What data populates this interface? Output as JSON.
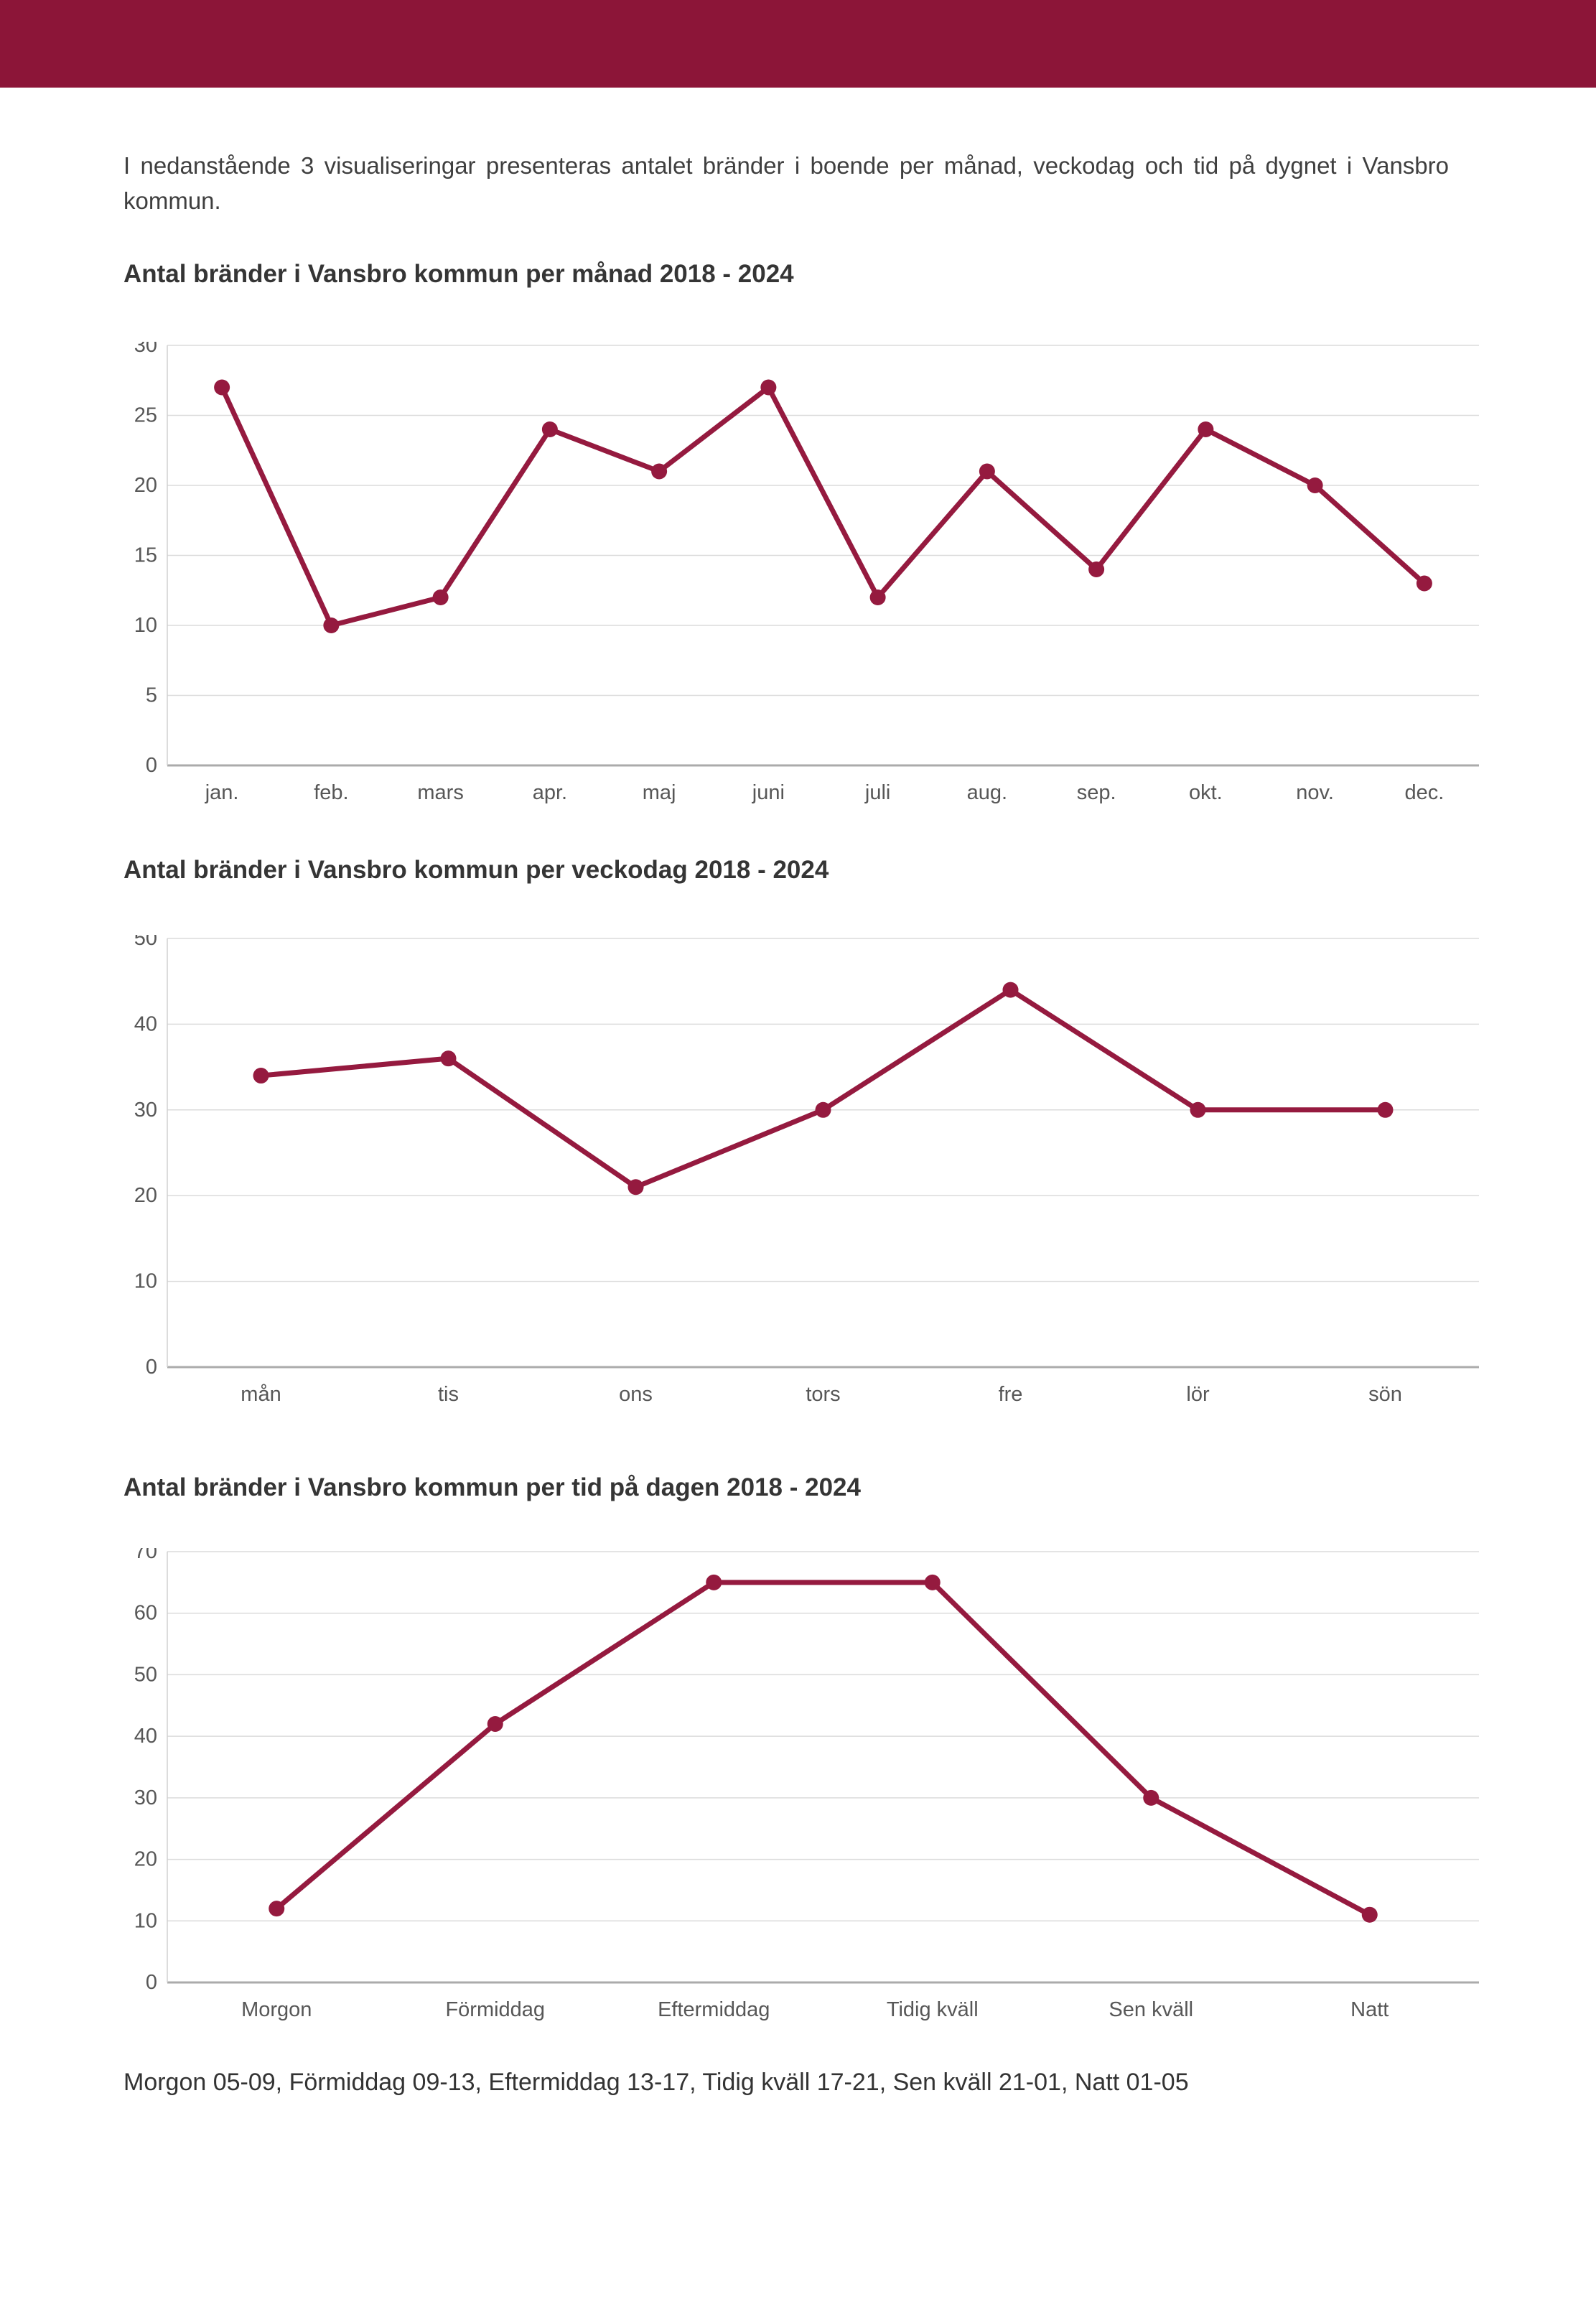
{
  "page": {
    "intro_text": "I nedanstående 3 visualiseringar presenteras antalet bränder i boende per månad, veckodag och tid på dygnet i Vansbro kommun.",
    "footer_note": "Morgon 05-09, Förmiddag 09-13, Eftermiddag 13-17, Tidig kväll 17-21, Sen kväll 21-01, Natt 01-05"
  },
  "theme": {
    "header_color": "#8C1538",
    "series_color": "#951A3F",
    "grid_color": "#DBDBDB",
    "axis_color": "#ABABAB",
    "plot_border_color": "#D0D0D0",
    "tick_label_color": "#575757"
  },
  "chart_data": [
    {
      "type": "line",
      "title": "Antal bränder i Vansbro kommun per månad 2018 - 2024",
      "categories": [
        "jan.",
        "feb.",
        "mars",
        "apr.",
        "maj",
        "juni",
        "juli",
        "aug.",
        "sep.",
        "okt.",
        "nov.",
        "dec."
      ],
      "values": [
        27,
        10,
        12,
        24,
        21,
        27,
        12,
        21,
        14,
        24,
        20,
        13
      ],
      "xlabel": "",
      "ylabel": "",
      "ylim": [
        0,
        30
      ],
      "ystep": 5,
      "grid": true,
      "legend_position": "none"
    },
    {
      "type": "line",
      "title": "Antal bränder i Vansbro kommun per veckodag 2018 - 2024",
      "categories": [
        "mån",
        "tis",
        "ons",
        "tors",
        "fre",
        "lör",
        "sön"
      ],
      "values": [
        34,
        36,
        21,
        30,
        44,
        30,
        30
      ],
      "xlabel": "",
      "ylabel": "",
      "ylim": [
        0,
        50
      ],
      "ystep": 10,
      "grid": true,
      "legend_position": "none"
    },
    {
      "type": "line",
      "title": "Antal bränder i Vansbro kommun per tid på dagen 2018 - 2024",
      "categories": [
        "Morgon",
        "Förmiddag",
        "Eftermiddag",
        "Tidig kväll",
        "Sen kväll",
        "Natt"
      ],
      "values": [
        12,
        42,
        65,
        65,
        30,
        11
      ],
      "xlabel": "",
      "ylabel": "",
      "ylim": [
        0,
        70
      ],
      "ystep": 10,
      "grid": true,
      "legend_position": "none"
    }
  ]
}
